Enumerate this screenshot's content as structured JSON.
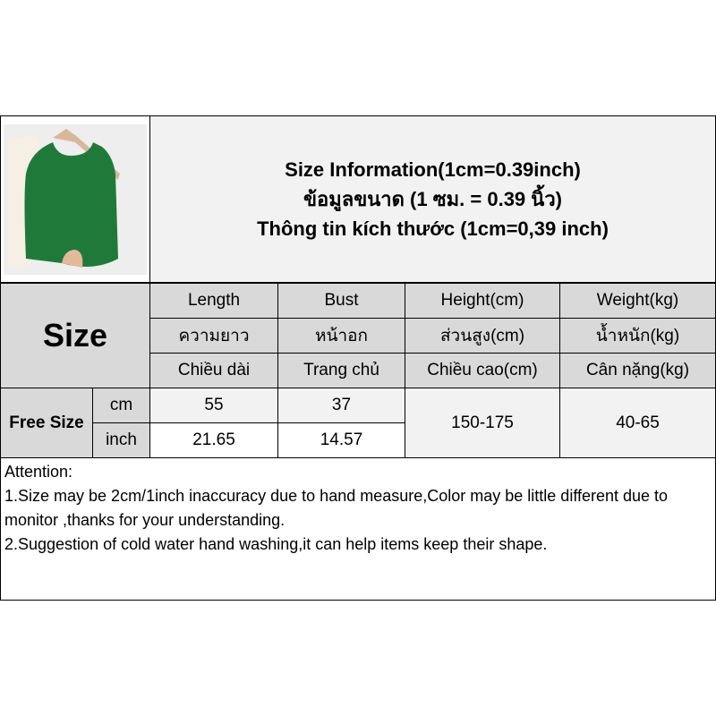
{
  "header": {
    "title_lines": [
      "Size Information(1cm=0.39inch)",
      "ข้อมูลขนาด (1 ซม. = 0.39 นิ้ว)",
      "Thông tin kích thước (1cm=0,39 inch)"
    ]
  },
  "image": {
    "icon": "green-sleeveless-knit-top-photo",
    "color": "#1f7a3a"
  },
  "table": {
    "size_label": "Size",
    "columns": [
      {
        "en": "Length",
        "th": "ความยาว",
        "vi": "Chiều dài"
      },
      {
        "en": "Bust",
        "th": "หน้าอก",
        "vi": "Trang chủ"
      },
      {
        "en": "Height(cm)",
        "th": "ส่วนสูง(cm)",
        "vi": "Chiều cao(cm)"
      },
      {
        "en": "Weight(kg)",
        "th": "น้ำหนัก(kg)",
        "vi": "Cân nặng(kg)"
      }
    ],
    "row": {
      "size": "Free Size",
      "cm_label": "cm",
      "inch_label": "inch",
      "length_cm": "55",
      "bust_cm": "37",
      "length_inch": "21.65",
      "bust_inch": "14.57",
      "height": "150-175",
      "weight": "40-65"
    }
  },
  "attention": {
    "title": "Attention:",
    "lines": [
      "1.Size may be 2cm/1inch inaccuracy due to hand measure,Color may be little different due to monitor ,thanks for your understanding.",
      "2.Suggestion of cold water hand washing,it can help items keep their shape."
    ]
  },
  "colors": {
    "header_gray": "#d9d9d9",
    "light_gray": "#f2f2f2"
  }
}
